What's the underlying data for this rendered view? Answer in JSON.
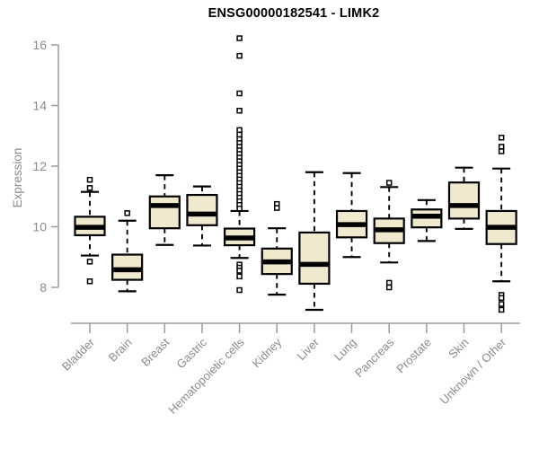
{
  "chart_data": {
    "type": "boxplot",
    "title": "ENSG00000182541 - LIMK2",
    "ylabel": "Expression",
    "yaxis": {
      "min": 8,
      "max": 16,
      "ticks": [
        8,
        10,
        12,
        14,
        16
      ]
    },
    "categories": [
      "Bladder",
      "Brain",
      "Breast",
      "Gastric",
      "Hematopoietic cells",
      "Kidney",
      "Liver",
      "Lung",
      "Pancreas",
      "Prostate",
      "Skin",
      "Unknown / Other"
    ],
    "series": [
      {
        "category": "Bladder",
        "whisker_low": 9.05,
        "q1": 9.72,
        "median": 9.98,
        "q3": 10.33,
        "whisker_high": 11.15,
        "outliers": [
          11.55,
          11.28,
          8.85,
          8.2
        ]
      },
      {
        "category": "Brain",
        "whisker_low": 7.87,
        "q1": 8.25,
        "median": 8.58,
        "q3": 9.08,
        "whisker_high": 10.2,
        "outliers": [
          10.45
        ]
      },
      {
        "category": "Breast",
        "whisker_low": 9.4,
        "q1": 9.95,
        "median": 10.7,
        "q3": 11.0,
        "whisker_high": 11.7,
        "outliers": []
      },
      {
        "category": "Gastric",
        "whisker_low": 9.38,
        "q1": 10.05,
        "median": 10.42,
        "q3": 11.05,
        "whisker_high": 11.33,
        "outliers": []
      },
      {
        "category": "Hematopoietic cells",
        "whisker_low": 8.97,
        "q1": 9.39,
        "median": 9.63,
        "q3": 9.94,
        "whisker_high": 10.52,
        "outliers": [
          16.22,
          15.64,
          14.4,
          13.83,
          13.19,
          13.04,
          12.89,
          12.76,
          12.64,
          12.52,
          12.4,
          12.28,
          12.16,
          12.04,
          11.92,
          11.8,
          11.68,
          11.56,
          11.44,
          11.32,
          11.2,
          11.08,
          10.96,
          10.84,
          10.72,
          10.6,
          8.75,
          8.65,
          8.55,
          8.36,
          7.91
        ]
      },
      {
        "category": "Kidney",
        "whisker_low": 7.76,
        "q1": 8.44,
        "median": 8.84,
        "q3": 9.28,
        "whisker_high": 9.95,
        "outliers": [
          10.75,
          10.62
        ]
      },
      {
        "category": "Liver",
        "whisker_low": 7.26,
        "q1": 8.12,
        "median": 8.76,
        "q3": 9.81,
        "whisker_high": 11.8,
        "outliers": []
      },
      {
        "category": "Lung",
        "whisker_low": 9.0,
        "q1": 9.65,
        "median": 10.07,
        "q3": 10.52,
        "whisker_high": 11.77,
        "outliers": []
      },
      {
        "category": "Pancreas",
        "whisker_low": 8.82,
        "q1": 9.46,
        "median": 9.9,
        "q3": 10.27,
        "whisker_high": 11.31,
        "outliers": [
          11.45,
          8.15,
          8.0
        ]
      },
      {
        "category": "Prostate",
        "whisker_low": 9.53,
        "q1": 9.98,
        "median": 10.35,
        "q3": 10.57,
        "whisker_high": 10.88,
        "outliers": []
      },
      {
        "category": "Skin",
        "whisker_low": 9.93,
        "q1": 10.27,
        "median": 10.7,
        "q3": 11.46,
        "whisker_high": 11.95,
        "outliers": []
      },
      {
        "category": "Unknown / Other",
        "whisker_low": 8.2,
        "q1": 9.43,
        "median": 9.98,
        "q3": 10.52,
        "whisker_high": 11.92,
        "outliers": [
          12.94,
          12.64,
          12.49,
          7.75,
          7.65,
          7.45,
          7.26
        ]
      }
    ],
    "colors": {
      "box_fill": "#f0e9ce",
      "box_border": "#000000",
      "median": "#000000",
      "whisker": "#000000",
      "outlier_stroke": "#000000",
      "outlier_fill": "#ffffff",
      "axis": "#9c9c9c",
      "tick_label": "#8b8b8b",
      "title": "#000000",
      "background": "#ffffff"
    },
    "layout_hints": {
      "grid": false,
      "legend": "none",
      "x_label_rotation": 45
    }
  }
}
